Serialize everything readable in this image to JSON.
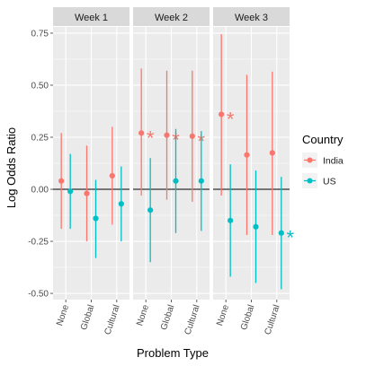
{
  "chart_data": {
    "type": "scatter",
    "subtype": "pointrange-faceted",
    "xlabel": "Problem Type",
    "ylabel": "Log Odds Ratio",
    "categories": [
      "None",
      "Global",
      "Cultural"
    ],
    "ylim": [
      -0.53,
      0.78
    ],
    "yticks": [
      -0.5,
      -0.25,
      0.0,
      0.25,
      0.5,
      0.75
    ],
    "ytick_labels": [
      "-0.50",
      "-0.25",
      "0.00",
      "0.25",
      "0.50",
      "0.75"
    ],
    "reference_line": 0,
    "grid": true,
    "legend": {
      "title": "Country",
      "position": "right",
      "entries": [
        {
          "name": "India",
          "color": "#f8766d"
        },
        {
          "name": "US",
          "color": "#00bfc4"
        }
      ]
    },
    "panels": [
      {
        "title": "Week 1",
        "series": [
          {
            "name": "India",
            "values": [
              0.04,
              -0.02,
              0.065
            ],
            "lower": [
              -0.19,
              -0.25,
              -0.17
            ],
            "upper": [
              0.27,
              0.21,
              0.3
            ],
            "significant": [
              false,
              false,
              false
            ]
          },
          {
            "name": "US",
            "values": [
              -0.01,
              -0.14,
              -0.07
            ],
            "lower": [
              -0.19,
              -0.33,
              -0.25
            ],
            "upper": [
              0.17,
              0.045,
              0.11
            ],
            "significant": [
              false,
              false,
              false
            ]
          }
        ]
      },
      {
        "title": "Week 2",
        "series": [
          {
            "name": "India",
            "values": [
              0.27,
              0.26,
              0.255
            ],
            "lower": [
              -0.03,
              -0.05,
              -0.06
            ],
            "upper": [
              0.58,
              0.57,
              0.57
            ],
            "significant": [
              true,
              true,
              true
            ]
          },
          {
            "name": "US",
            "values": [
              -0.1,
              0.04,
              0.04
            ],
            "lower": [
              -0.35,
              -0.21,
              -0.2
            ],
            "upper": [
              0.15,
              0.29,
              0.28
            ],
            "significant": [
              false,
              false,
              false
            ]
          }
        ]
      },
      {
        "title": "Week 3",
        "series": [
          {
            "name": "India",
            "values": [
              0.36,
              0.165,
              0.175
            ],
            "lower": [
              -0.03,
              -0.22,
              -0.22
            ],
            "upper": [
              0.745,
              0.55,
              0.565
            ],
            "significant": [
              true,
              false,
              false
            ]
          },
          {
            "name": "US",
            "values": [
              -0.15,
              -0.18,
              -0.21
            ],
            "lower": [
              -0.42,
              -0.45,
              -0.48
            ],
            "upper": [
              0.12,
              0.09,
              0.06
            ],
            "significant": [
              false,
              false,
              true
            ]
          }
        ]
      }
    ],
    "significance_marker": "*"
  }
}
